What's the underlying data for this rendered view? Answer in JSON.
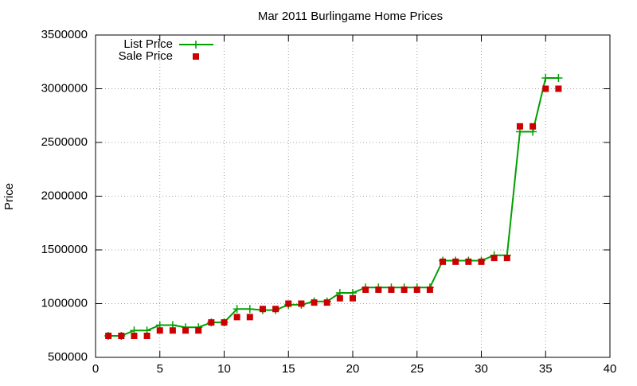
{
  "chart_data": {
    "type": "line",
    "title": "Mar 2011 Burlingame Home Prices",
    "y_label": "Price",
    "x": [
      1,
      2,
      3,
      4,
      5,
      6,
      7,
      8,
      9,
      10,
      11,
      12,
      13,
      14,
      15,
      16,
      17,
      18,
      19,
      20,
      21,
      22,
      23,
      24,
      25,
      26,
      27,
      28,
      29,
      30,
      31,
      32,
      33,
      34,
      35,
      36
    ],
    "series": [
      {
        "name": "List Price",
        "color": "#00a000",
        "mode": "lines+markers",
        "values": [
          700000,
          700000,
          750000,
          750000,
          800000,
          800000,
          780000,
          780000,
          825000,
          825000,
          950000,
          950000,
          940000,
          940000,
          990000,
          990000,
          1020000,
          1020000,
          1100000,
          1100000,
          1150000,
          1150000,
          1150000,
          1150000,
          1150000,
          1150000,
          1400000,
          1400000,
          1400000,
          1400000,
          1450000,
          1450000,
          2600000,
          2600000,
          3100000,
          3100000
        ]
      },
      {
        "name": "Sale Price",
        "color": "#cc0000",
        "mode": "markers",
        "values": [
          700000,
          700000,
          700000,
          700000,
          750000,
          750000,
          750000,
          750000,
          825000,
          825000,
          875000,
          875000,
          950000,
          950000,
          1000000,
          1000000,
          1010000,
          1010000,
          1050000,
          1050000,
          1130000,
          1130000,
          1130000,
          1130000,
          1130000,
          1130000,
          1390000,
          1390000,
          1390000,
          1390000,
          1425000,
          1425000,
          2650000,
          2650000,
          3000000,
          3000000
        ]
      }
    ],
    "xlim": [
      0,
      40
    ],
    "xticks": [
      0,
      5,
      10,
      15,
      20,
      25,
      30,
      35,
      40
    ],
    "ylim": [
      500000,
      3500000
    ],
    "yticks": [
      500000,
      1000000,
      1500000,
      2000000,
      2500000,
      3000000,
      3500000
    ],
    "grid": true,
    "legend_position": "top-left"
  }
}
